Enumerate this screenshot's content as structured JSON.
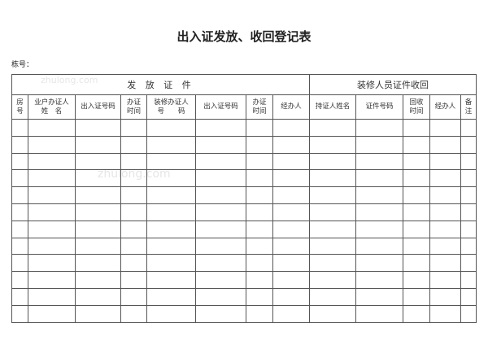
{
  "title": "出入证发放、收回登记表",
  "building_label": "栋号：",
  "watermarks": [
    "zhulong.com",
    "zhulong.com"
  ],
  "sections": [
    "发 放 证 件",
    "装修人员证件收回"
  ],
  "columns": [
    [
      "房",
      "号"
    ],
    [
      "业户办证人",
      "姓　名"
    ],
    [
      "出入证号码"
    ],
    [
      "办证",
      "时间"
    ],
    [
      "装修办证人",
      "号　　码"
    ],
    [
      "出入证号码"
    ],
    [
      "办证",
      "时间"
    ],
    [
      "经办人"
    ],
    [
      "持证人姓名"
    ],
    [
      "证件号码"
    ],
    [
      "回收",
      "时间"
    ],
    [
      "经办人"
    ],
    [
      "备",
      "注"
    ]
  ],
  "row_count": 12
}
